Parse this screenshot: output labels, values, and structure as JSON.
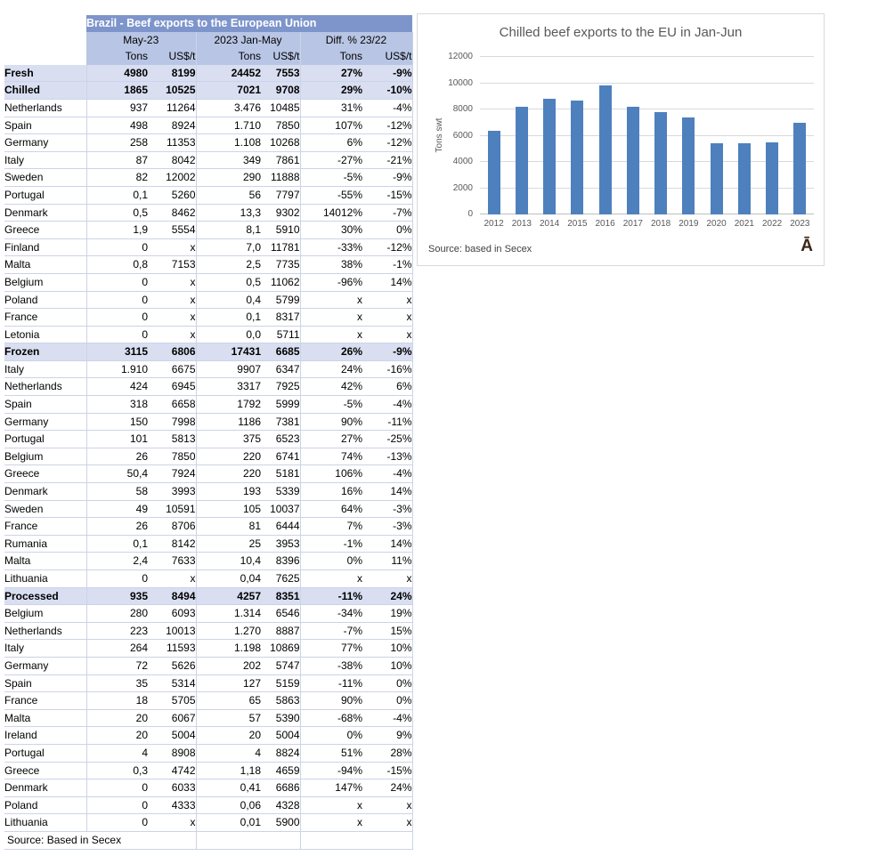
{
  "table": {
    "title": "Brazil - Beef exports to the European Union",
    "col_groups": [
      "May-23",
      "2023 Jan-May",
      "Diff. % 23/22"
    ],
    "unit_headers": [
      "Tons",
      "US$/t",
      "Tons",
      "US$/t",
      "Tons",
      "US$/t"
    ],
    "rows": [
      {
        "label": "Fresh",
        "type": "section",
        "values": [
          "4980",
          "8199",
          "24452",
          "7553",
          "27%",
          "-9%"
        ]
      },
      {
        "label": "Chilled",
        "type": "section",
        "values": [
          "1865",
          "10525",
          "7021",
          "9708",
          "29%",
          "-10%"
        ]
      },
      {
        "label": "Netherlands",
        "type": "data",
        "values": [
          "937",
          "11264",
          "3.476",
          "10485",
          "31%",
          "-4%"
        ]
      },
      {
        "label": "Spain",
        "type": "data",
        "values": [
          "498",
          "8924",
          "1.710",
          "7850",
          "107%",
          "-12%"
        ]
      },
      {
        "label": "Germany",
        "type": "data",
        "values": [
          "258",
          "11353",
          "1.108",
          "10268",
          "6%",
          "-12%"
        ]
      },
      {
        "label": "Italy",
        "type": "data",
        "values": [
          "87",
          "8042",
          "349",
          "7861",
          "-27%",
          "-21%"
        ]
      },
      {
        "label": "Sweden",
        "type": "data",
        "values": [
          "82",
          "12002",
          "290",
          "11888",
          "-5%",
          "-9%"
        ]
      },
      {
        "label": "Portugal",
        "type": "data",
        "values": [
          "0,1",
          "5260",
          "56",
          "7797",
          "-55%",
          "-15%"
        ]
      },
      {
        "label": "Denmark",
        "type": "data",
        "values": [
          "0,5",
          "8462",
          "13,3",
          "9302",
          "14012%",
          "-7%"
        ]
      },
      {
        "label": "Greece",
        "type": "data",
        "values": [
          "1,9",
          "5554",
          "8,1",
          "5910",
          "30%",
          "0%"
        ]
      },
      {
        "label": "Finland",
        "type": "data",
        "values": [
          "0",
          "x",
          "7,0",
          "11781",
          "-33%",
          "-12%"
        ]
      },
      {
        "label": "Malta",
        "type": "data",
        "values": [
          "0,8",
          "7153",
          "2,5",
          "7735",
          "38%",
          "-1%"
        ]
      },
      {
        "label": "Belgium",
        "type": "data",
        "values": [
          "0",
          "x",
          "0,5",
          "11062",
          "-96%",
          "14%"
        ]
      },
      {
        "label": "Poland",
        "type": "data",
        "values": [
          "0",
          "x",
          "0,4",
          "5799",
          "x",
          "x"
        ]
      },
      {
        "label": "France",
        "type": "data",
        "values": [
          "0",
          "x",
          "0,1",
          "8317",
          "x",
          "x"
        ]
      },
      {
        "label": "Letonia",
        "type": "data",
        "values": [
          "0",
          "x",
          "0,0",
          "5711",
          "x",
          "x"
        ]
      },
      {
        "label": "Frozen",
        "type": "section",
        "values": [
          "3115",
          "6806",
          "17431",
          "6685",
          "26%",
          "-9%"
        ]
      },
      {
        "label": "Italy",
        "type": "data",
        "values": [
          "1.910",
          "6675",
          "9907",
          "6347",
          "24%",
          "-16%"
        ]
      },
      {
        "label": "Netherlands",
        "type": "data",
        "values": [
          "424",
          "6945",
          "3317",
          "7925",
          "42%",
          "6%"
        ]
      },
      {
        "label": "Spain",
        "type": "data",
        "values": [
          "318",
          "6658",
          "1792",
          "5999",
          "-5%",
          "-4%"
        ]
      },
      {
        "label": "Germany",
        "type": "data",
        "values": [
          "150",
          "7998",
          "1186",
          "7381",
          "90%",
          "-11%"
        ]
      },
      {
        "label": "Portugal",
        "type": "data",
        "values": [
          "101",
          "5813",
          "375",
          "6523",
          "27%",
          "-25%"
        ]
      },
      {
        "label": "Belgium",
        "type": "data",
        "values": [
          "26",
          "7850",
          "220",
          "6741",
          "74%",
          "-13%"
        ]
      },
      {
        "label": "Greece",
        "type": "data",
        "values": [
          "50,4",
          "7924",
          "220",
          "5181",
          "106%",
          "-4%"
        ]
      },
      {
        "label": "Denmark",
        "type": "data",
        "values": [
          "58",
          "3993",
          "193",
          "5339",
          "16%",
          "14%"
        ]
      },
      {
        "label": "Sweden",
        "type": "data",
        "values": [
          "49",
          "10591",
          "105",
          "10037",
          "64%",
          "-3%"
        ]
      },
      {
        "label": "France",
        "type": "data",
        "values": [
          "26",
          "8706",
          "81",
          "6444",
          "7%",
          "-3%"
        ]
      },
      {
        "label": "Rumania",
        "type": "data",
        "values": [
          "0,1",
          "8142",
          "25",
          "3953",
          "-1%",
          "14%"
        ]
      },
      {
        "label": "Malta",
        "type": "data",
        "values": [
          "2,4",
          "7633",
          "10,4",
          "8396",
          "0%",
          "11%"
        ]
      },
      {
        "label": "Lithuania",
        "type": "data",
        "values": [
          "0",
          "x",
          "0,04",
          "7625",
          "x",
          "x"
        ]
      },
      {
        "label": "Processed",
        "type": "section",
        "values": [
          "935",
          "8494",
          "4257",
          "8351",
          "-11%",
          "24%"
        ]
      },
      {
        "label": "Belgium",
        "type": "data",
        "values": [
          "280",
          "6093",
          "1.314",
          "6546",
          "-34%",
          "19%"
        ]
      },
      {
        "label": "Netherlands",
        "type": "data",
        "values": [
          "223",
          "10013",
          "1.270",
          "8887",
          "-7%",
          "15%"
        ]
      },
      {
        "label": "Italy",
        "type": "data",
        "values": [
          "264",
          "11593",
          "1.198",
          "10869",
          "77%",
          "10%"
        ]
      },
      {
        "label": "Germany",
        "type": "data",
        "values": [
          "72",
          "5626",
          "202",
          "5747",
          "-38%",
          "10%"
        ]
      },
      {
        "label": "Spain",
        "type": "data",
        "values": [
          "35",
          "5314",
          "127",
          "5159",
          "-11%",
          "0%"
        ]
      },
      {
        "label": "France",
        "type": "data",
        "values": [
          "18",
          "5705",
          "65",
          "5863",
          "90%",
          "0%"
        ]
      },
      {
        "label": "Malta",
        "type": "data",
        "values": [
          "20",
          "6067",
          "57",
          "5390",
          "-68%",
          "-4%"
        ]
      },
      {
        "label": "Ireland",
        "type": "data",
        "values": [
          "20",
          "5004",
          "20",
          "5004",
          "0%",
          "9%"
        ]
      },
      {
        "label": "Portugal",
        "type": "data",
        "values": [
          "4",
          "8908",
          "4",
          "8824",
          "51%",
          "28%"
        ]
      },
      {
        "label": "Greece",
        "type": "data",
        "values": [
          "0,3",
          "4742",
          "1,18",
          "4659",
          "-94%",
          "-15%"
        ]
      },
      {
        "label": "Denmark",
        "type": "data",
        "values": [
          "0",
          "6033",
          "0,41",
          "6686",
          "147%",
          "24%"
        ]
      },
      {
        "label": "Poland",
        "type": "data",
        "values": [
          "0",
          "4333",
          "0,06",
          "4328",
          "x",
          "x"
        ]
      },
      {
        "label": "Lithuania",
        "type": "data",
        "values": [
          "0",
          "x",
          "0,01",
          "5900",
          "x",
          "x"
        ]
      }
    ],
    "source": "Source: Based in Secex",
    "colors": {
      "title_bg": "#7e95cb",
      "header_bg": "#b8c5e4",
      "section_bg": "#d9dff1",
      "border": "#ccd3e8"
    }
  },
  "chart_data": {
    "type": "bar",
    "title": "Chilled beef exports to the EU in Jan-Jun",
    "categories": [
      "2012",
      "2013",
      "2014",
      "2015",
      "2016",
      "2017",
      "2018",
      "2019",
      "2020",
      "2021",
      "2022",
      "2023"
    ],
    "values": [
      6350,
      8200,
      8800,
      8700,
      9850,
      8200,
      7800,
      7400,
      5450,
      5430,
      5500,
      7000
    ],
    "xlabel": "",
    "ylabel": "Tons swt",
    "ylim": [
      0,
      12000
    ],
    "ytick_step": 2000,
    "grid": true,
    "legend": "none",
    "bar_color": "#4e80bd",
    "source": "Source: based in Secex",
    "corner_glyph": "Ā"
  }
}
